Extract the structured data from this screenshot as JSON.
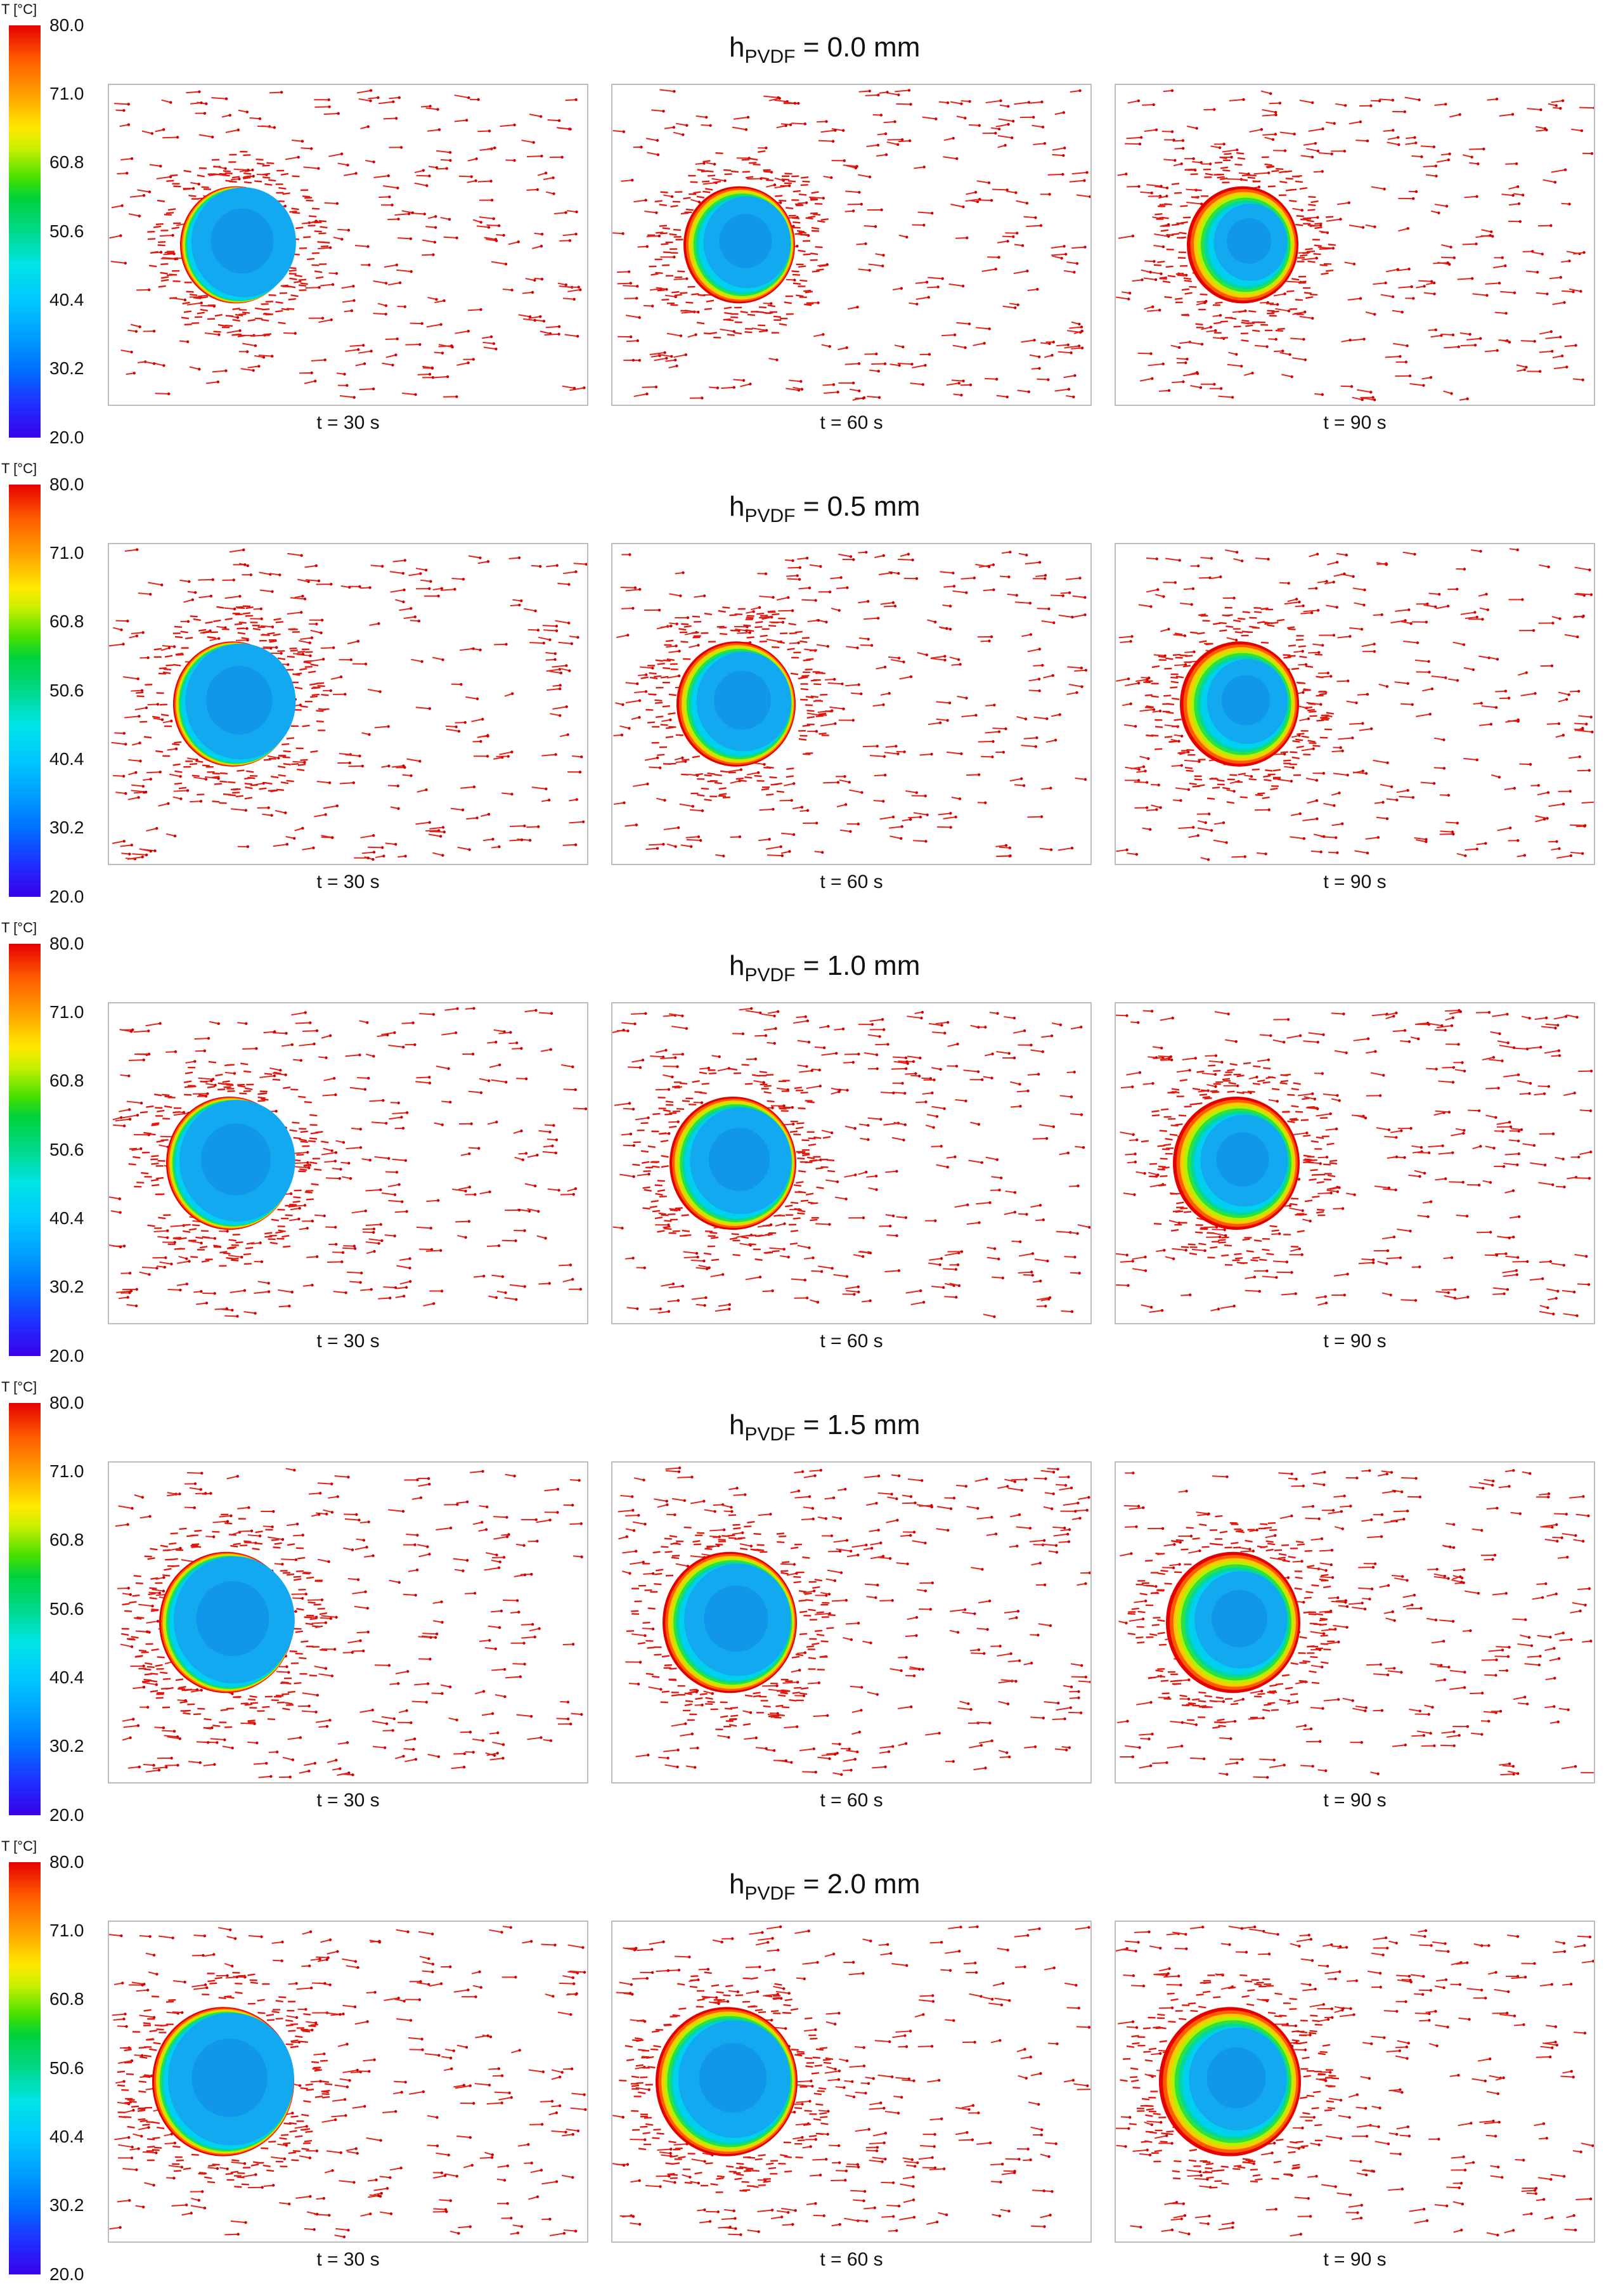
{
  "chart_data": {
    "type": "heatmap",
    "colorbar": {
      "label": "T [°C]",
      "ticks": [
        "80.0",
        "71.0",
        "60.8",
        "50.6",
        "40.4",
        "30.2",
        "20.0"
      ],
      "range": [
        20.0,
        80.0
      ],
      "colors": [
        "#e50000",
        "#ff8c00",
        "#ffe800",
        "#46e000",
        "#00d88a",
        "#00e4e6",
        "#00a0ff",
        "#1f2fff",
        "#3a00ea"
      ]
    },
    "rows": [
      {
        "h_value": "0.0",
        "panels": [
          {
            "time": "t = 30 s",
            "hot_fraction": 0.1
          },
          {
            "time": "t = 60 s",
            "hot_fraction": 0.35
          },
          {
            "time": "t = 90 s",
            "hot_fraction": 0.55
          }
        ]
      },
      {
        "h_value": "0.5",
        "panels": [
          {
            "time": "t = 30 s",
            "hot_fraction": 0.12
          },
          {
            "time": "t = 60 s",
            "hot_fraction": 0.33
          },
          {
            "time": "t = 90 s",
            "hot_fraction": 0.52
          }
        ]
      },
      {
        "h_value": "1.0",
        "panels": [
          {
            "time": "t = 30 s",
            "hot_fraction": 0.14
          },
          {
            "time": "t = 60 s",
            "hot_fraction": 0.32
          },
          {
            "time": "t = 90 s",
            "hot_fraction": 0.5
          }
        ]
      },
      {
        "h_value": "1.5",
        "panels": [
          {
            "time": "t = 30 s",
            "hot_fraction": 0.16
          },
          {
            "time": "t = 60 s",
            "hot_fraction": 0.33
          },
          {
            "time": "t = 90 s",
            "hot_fraction": 0.5
          }
        ]
      },
      {
        "h_value": "2.0",
        "panels": [
          {
            "time": "t = 30 s",
            "hot_fraction": 0.18
          },
          {
            "time": "t = 60 s",
            "hot_fraction": 0.34
          },
          {
            "time": "t = 90 s",
            "hot_fraction": 0.5
          }
        ]
      }
    ]
  },
  "title_prefix": "h",
  "title_subscript": "PVDF",
  "title_unit": "mm"
}
